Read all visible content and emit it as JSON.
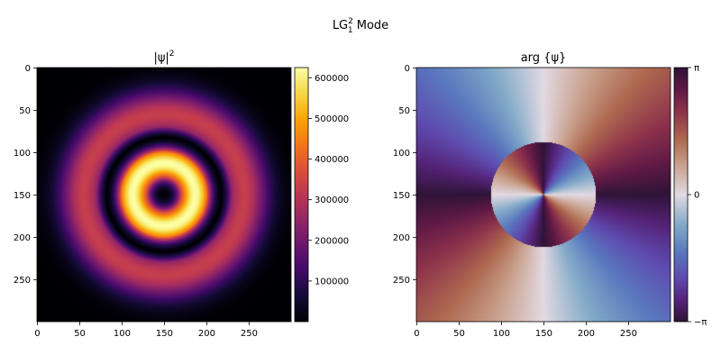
{
  "chart_data": [
    {
      "type": "heatmap",
      "title": "|ψ|²",
      "xlabel": "",
      "ylabel": "",
      "xlim": [
        0,
        299
      ],
      "ylim": [
        299,
        0
      ],
      "xticks": [
        0,
        50,
        100,
        150,
        200,
        250
      ],
      "yticks": [
        0,
        50,
        100,
        150,
        200,
        250
      ],
      "colormap": "inferno",
      "colorbar": {
        "range": [
          0,
          625000
        ],
        "ticks": [
          100000,
          200000,
          300000,
          400000,
          500000,
          600000
        ],
        "tick_labels": [
          "100000",
          "200000",
          "300000",
          "400000",
          "500000",
          "600000"
        ]
      },
      "center": [
        150,
        150
      ],
      "features": {
        "inner_ring_radius": 37,
        "inner_ring_peak": 625000,
        "dark_node_radius": 68,
        "outer_ring_radius": 95,
        "outer_ring_peak": 330000
      }
    },
    {
      "type": "heatmap",
      "title": "arg {ψ}",
      "xlabel": "",
      "ylabel": "",
      "xlim": [
        0,
        299
      ],
      "ylim": [
        299,
        0
      ],
      "xticks": [
        0,
        50,
        100,
        150,
        200,
        250
      ],
      "yticks": [
        0,
        50,
        100,
        150,
        200,
        250
      ],
      "colormap": "twilight",
      "colorbar": {
        "range": [
          "-π",
          "π"
        ],
        "ticks": [
          "−π",
          "0",
          "π"
        ],
        "tick_labels": [
          "−π",
          "0",
          "π"
        ]
      },
      "center": [
        150,
        150
      ],
      "features": {
        "azimuthal_charge": 2,
        "phase_flip_radius": 62
      }
    }
  ],
  "figure": {
    "suptitle_main": "LG",
    "suptitle_sup": "2",
    "suptitle_sub": "1",
    "suptitle_rest": " Mode",
    "left_title_main": "|ψ|",
    "left_title_sup": "2",
    "right_title": "arg {ψ}"
  }
}
